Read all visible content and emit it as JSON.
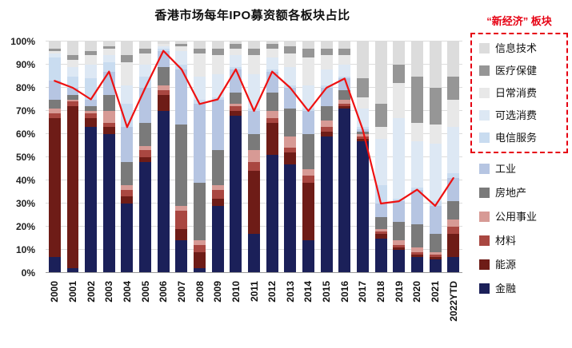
{
  "chart_data": {
    "type": "stacked-bar-line-combo",
    "title": "香港市场每年IPO募资额各板块占比",
    "legend_group_label": "“新经济” 板块",
    "legend_position": "right",
    "grid": "horizontal",
    "ylim": [
      0,
      100
    ],
    "y_ticks": [
      "0%",
      "10%",
      "20%",
      "30%",
      "40%",
      "50%",
      "60%",
      "70%",
      "80%",
      "90%",
      "100%"
    ],
    "categories": [
      "2000",
      "2001",
      "2002",
      "2003",
      "2004",
      "2005",
      "2006",
      "2007",
      "2008",
      "2009",
      "2010",
      "2011",
      "2012",
      "2013",
      "2014",
      "2015",
      "2016",
      "2017",
      "2018",
      "2019",
      "2020",
      "2021",
      "2022YTD"
    ],
    "bar_series_bottom_to_top": [
      {
        "name": "金融",
        "key": "financials",
        "color": "#1b2059",
        "new_economy": false,
        "values": [
          7,
          2,
          63,
          60,
          30,
          48,
          70,
          14,
          2,
          29,
          68,
          17,
          51,
          47,
          14,
          59,
          71,
          57,
          15,
          10,
          7,
          6,
          7
        ]
      },
      {
        "name": "能源",
        "key": "energy",
        "color": "#6e1c17",
        "new_economy": false,
        "values": [
          60,
          70,
          4,
          3,
          3,
          2,
          7,
          5,
          7,
          3,
          2,
          27,
          14,
          5,
          25,
          2,
          1,
          1,
          2,
          1,
          1,
          1,
          10
        ]
      },
      {
        "name": "材料",
        "key": "materials",
        "color": "#a94741",
        "new_economy": false,
        "values": [
          2,
          2,
          2,
          2,
          3,
          3,
          2,
          8,
          3,
          4,
          2,
          4,
          2,
          2,
          3,
          2,
          1,
          1,
          1,
          1,
          1,
          1,
          3
        ]
      },
      {
        "name": "公用事业",
        "key": "utilities",
        "color": "#d79a95",
        "new_economy": false,
        "values": [
          2,
          1,
          1,
          5,
          2,
          2,
          2,
          2,
          2,
          2,
          1,
          5,
          3,
          5,
          3,
          3,
          2,
          1,
          1,
          2,
          2,
          1,
          3
        ]
      },
      {
        "name": "房地产",
        "key": "real-estate",
        "color": "#7a7a7a",
        "new_economy": false,
        "values": [
          4,
          2,
          2,
          7,
          10,
          10,
          8,
          35,
          25,
          15,
          5,
          7,
          8,
          12,
          15,
          6,
          4,
          1,
          5,
          8,
          10,
          8,
          8
        ]
      },
      {
        "name": "工业",
        "key": "industrials",
        "color": "#b6c5e2",
        "new_economy": false,
        "values": [
          8,
          3,
          3,
          10,
          15,
          15,
          7,
          24,
          34,
          22,
          10,
          10,
          9,
          9,
          10,
          8,
          5,
          1,
          6,
          9,
          15,
          12,
          10
        ]
      },
      {
        "name": "电信服务",
        "key": "telecom-services",
        "color": "#c9dcf0",
        "new_economy": true,
        "values": [
          10,
          5,
          9,
          4,
          10,
          5,
          1,
          2,
          2,
          1,
          1,
          1,
          1,
          1,
          1,
          1,
          1,
          1,
          8,
          1,
          1,
          2,
          2
        ]
      },
      {
        "name": "可选消费",
        "key": "consumer-discretionary",
        "color": "#dde8f4",
        "new_economy": true,
        "values": [
          2,
          4,
          6,
          3,
          8,
          5,
          1,
          6,
          10,
          10,
          5,
          15,
          5,
          8,
          10,
          7,
          5,
          8,
          20,
          35,
          20,
          25,
          20
        ]
      },
      {
        "name": "日常消费",
        "key": "consumer-staples",
        "color": "#e8e8e8",
        "new_economy": true,
        "values": [
          1,
          3,
          4,
          3,
          10,
          5,
          1,
          2,
          10,
          8,
          3,
          8,
          4,
          6,
          12,
          6,
          4,
          5,
          5,
          15,
          8,
          8,
          12
        ]
      },
      {
        "name": "医疗保健",
        "key": "healthcare",
        "color": "#969696",
        "new_economy": true,
        "values": [
          1,
          2,
          2,
          1,
          3,
          2,
          0,
          1,
          2,
          3,
          2,
          3,
          2,
          3,
          4,
          3,
          3,
          8,
          10,
          8,
          20,
          16,
          10
        ]
      },
      {
        "name": "信息技术",
        "key": "info-tech",
        "color": "#dcdcdc",
        "new_economy": true,
        "values": [
          3,
          6,
          4,
          2,
          6,
          3,
          1,
          1,
          3,
          3,
          1,
          3,
          1,
          2,
          3,
          3,
          3,
          16,
          27,
          10,
          15,
          20,
          15
        ]
      }
    ],
    "line_series": {
      "key": "red-line",
      "color": "#ee1111",
      "values": [
        83,
        80,
        75,
        87,
        63,
        80,
        96,
        88,
        73,
        75,
        88,
        70,
        87,
        80,
        70,
        80,
        84,
        62,
        30,
        31,
        36,
        29,
        41
      ]
    }
  }
}
